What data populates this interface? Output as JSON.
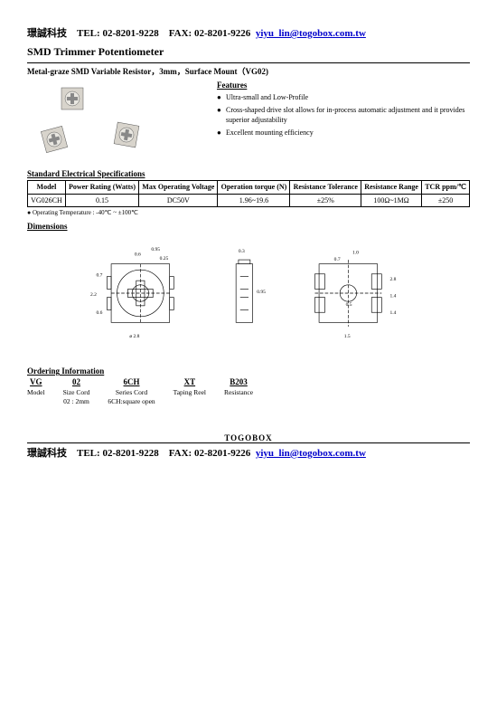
{
  "header": {
    "company_cjk": "璟誠科技",
    "tel_label": "TEL:",
    "tel": "02-8201-9228",
    "fax_label": "FAX:",
    "fax": "02-8201-9226",
    "email": "yiyu_lin@togobox.com.tw"
  },
  "title": "SMD Trimmer Potentiometer",
  "subtitle": "Metal-graze SMD Variable Resistor，3mm，Surface Mount（VG02)",
  "features": {
    "title": "Features",
    "items": [
      "Ultra-small and Low-Profile",
      "Cross-shaped drive slot allows for in-process automatic adjustment and it provides superior adjustability",
      "Excellent mounting efficiency"
    ]
  },
  "specs": {
    "title": "Standard Electrical Specifications",
    "headers": [
      "Model",
      "Power Rating (Watts)",
      "Max Operating Voltage",
      "Operation torque (N)",
      "Resistance Tolerance",
      "Resistance Range",
      "TCR ppm/℃"
    ],
    "row": [
      "VG026CH",
      "0.15",
      "DC50V",
      "1.96~19.6",
      "±25%",
      "100Ω~1MΩ",
      "±250"
    ],
    "note": "● Operating Temperature : -40℃ ~ ±100℃"
  },
  "dimensions_title": "Dimensions",
  "dimensions_labels": {
    "top_a": "0.95",
    "top_b": "0.6",
    "top_c": "0.25",
    "left_a": "0.7",
    "left_b": "2.2",
    "left_c": "0.6",
    "bottom_a": "ø 2.8",
    "right_view_a": "0.3",
    "right_view_b": "0.95",
    "r_top": "1.0",
    "r_mid1": "0.7",
    "r_mid2": "0.5",
    "r_side1": "2.8",
    "r_side2": "1.4",
    "r_side3": "1.4",
    "r_bot": "1.5"
  },
  "ordering": {
    "title": "Ordering Information",
    "cols": [
      {
        "h": "VG",
        "s": "Model"
      },
      {
        "h": "02",
        "s": "Size Cord\n02 : 2mm"
      },
      {
        "h": "6CH",
        "s": "Series Cord\n6CH:square open"
      },
      {
        "h": "XT",
        "s": "Taping Reel"
      },
      {
        "h": "B203",
        "s": "Resistance"
      }
    ]
  },
  "footer_brand": "TOGOBOX",
  "colors": {
    "link": "#0000cc",
    "border": "#000000",
    "bg": "#ffffff"
  }
}
